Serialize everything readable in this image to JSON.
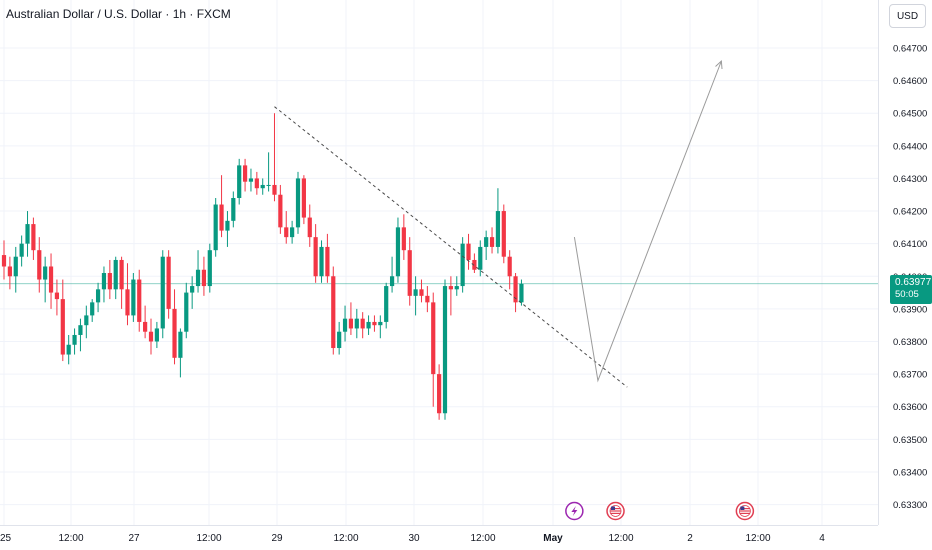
{
  "header": {
    "symbol_title": "Australian Dollar / U.S. Dollar · 1h · FXCM"
  },
  "currency_button": "USD",
  "last_price": {
    "price": "0.63977",
    "countdown": "50:05"
  },
  "colors": {
    "up": "#089981",
    "down": "#f23645",
    "grid": "#f0f3fa",
    "price_line": "#089981",
    "drawing": "#9b9b9b",
    "trend_dash": "#4a4a4a"
  },
  "chart_data": {
    "type": "candlestick",
    "y_ticks": [
      "0.64700",
      "0.64600",
      "0.64500",
      "0.64400",
      "0.64300",
      "0.64200",
      "0.64100",
      "0.64000",
      "0.63900",
      "0.63800",
      "0.63700",
      "0.63600",
      "0.63500",
      "0.63400",
      "0.63300"
    ],
    "ylim": [
      0.63268,
      0.64795
    ],
    "x_ticks": [
      "25",
      "12:00",
      "27",
      "12:00",
      "29",
      "12:00",
      "30",
      "12:00",
      "May",
      "12:00",
      "2",
      "12:00",
      "4"
    ],
    "candles": [
      [
        0.64065,
        0.6411,
        0.6399,
        0.6403
      ],
      [
        0.6403,
        0.6406,
        0.6396,
        0.64
      ],
      [
        0.64,
        0.6409,
        0.6395,
        0.6406
      ],
      [
        0.6406,
        0.64125,
        0.6403,
        0.641
      ],
      [
        0.641,
        0.642,
        0.6406,
        0.6416
      ],
      [
        0.6416,
        0.6418,
        0.6405,
        0.6408
      ],
      [
        0.6408,
        0.6412,
        0.6395,
        0.6399
      ],
      [
        0.6399,
        0.6406,
        0.6392,
        0.6403
      ],
      [
        0.6403,
        0.6407,
        0.639,
        0.6395
      ],
      [
        0.6395,
        0.6399,
        0.6388,
        0.6393
      ],
      [
        0.6393,
        0.6399,
        0.6374,
        0.6376
      ],
      [
        0.6376,
        0.6382,
        0.6373,
        0.6379
      ],
      [
        0.6379,
        0.6384,
        0.6376,
        0.6382
      ],
      [
        0.6382,
        0.6387,
        0.6377,
        0.6385
      ],
      [
        0.6385,
        0.6391,
        0.6381,
        0.6388
      ],
      [
        0.6388,
        0.6393,
        0.6386,
        0.6392
      ],
      [
        0.6392,
        0.6398,
        0.6389,
        0.6396
      ],
      [
        0.6396,
        0.6403,
        0.6392,
        0.6401
      ],
      [
        0.6401,
        0.6405,
        0.6393,
        0.6396
      ],
      [
        0.6396,
        0.6406,
        0.6393,
        0.6405
      ],
      [
        0.6405,
        0.6406,
        0.639,
        0.6396
      ],
      [
        0.6396,
        0.6404,
        0.6385,
        0.6388
      ],
      [
        0.6388,
        0.6401,
        0.6386,
        0.6399
      ],
      [
        0.6399,
        0.6402,
        0.6383,
        0.6386
      ],
      [
        0.6386,
        0.6391,
        0.6381,
        0.6383
      ],
      [
        0.6383,
        0.6387,
        0.6376,
        0.638
      ],
      [
        0.638,
        0.6386,
        0.6378,
        0.6384
      ],
      [
        0.6384,
        0.6408,
        0.6381,
        0.6406
      ],
      [
        0.6406,
        0.6408,
        0.6387,
        0.639
      ],
      [
        0.639,
        0.6396,
        0.6373,
        0.6375
      ],
      [
        0.6375,
        0.6384,
        0.6369,
        0.6383
      ],
      [
        0.6383,
        0.6398,
        0.6381,
        0.6395
      ],
      [
        0.6395,
        0.64,
        0.639,
        0.6397
      ],
      [
        0.6397,
        0.6408,
        0.6395,
        0.6402
      ],
      [
        0.6402,
        0.6406,
        0.6394,
        0.6397
      ],
      [
        0.6397,
        0.641,
        0.6395,
        0.6408
      ],
      [
        0.6408,
        0.6424,
        0.6406,
        0.6422
      ],
      [
        0.6422,
        0.6431,
        0.6412,
        0.6414
      ],
      [
        0.6414,
        0.642,
        0.6409,
        0.6417
      ],
      [
        0.6417,
        0.6426,
        0.6415,
        0.6424
      ],
      [
        0.6424,
        0.6436,
        0.6422,
        0.6434
      ],
      [
        0.6434,
        0.6436,
        0.6426,
        0.6429
      ],
      [
        0.6429,
        0.6433,
        0.6426,
        0.643
      ],
      [
        0.643,
        0.6432,
        0.6425,
        0.6427
      ],
      [
        0.6427,
        0.643,
        0.6425,
        0.6428
      ],
      [
        0.6428,
        0.6438,
        0.6426,
        0.6428
      ],
      [
        0.6428,
        0.645,
        0.6423,
        0.6425
      ],
      [
        0.6425,
        0.6428,
        0.6413,
        0.6415
      ],
      [
        0.6415,
        0.642,
        0.641,
        0.6412
      ],
      [
        0.6412,
        0.6417,
        0.641,
        0.6415
      ],
      [
        0.6415,
        0.6432,
        0.6413,
        0.643
      ],
      [
        0.643,
        0.6431,
        0.6416,
        0.6418
      ],
      [
        0.6418,
        0.6422,
        0.6409,
        0.6412
      ],
      [
        0.6412,
        0.6416,
        0.6398,
        0.64
      ],
      [
        0.64,
        0.6411,
        0.6398,
        0.6409
      ],
      [
        0.6409,
        0.6413,
        0.6398,
        0.64
      ],
      [
        0.64,
        0.6403,
        0.6376,
        0.6378
      ],
      [
        0.6378,
        0.6386,
        0.6376,
        0.6383
      ],
      [
        0.6383,
        0.6391,
        0.638,
        0.6387
      ],
      [
        0.6387,
        0.6392,
        0.6382,
        0.6384
      ],
      [
        0.6384,
        0.639,
        0.6381,
        0.6387
      ],
      [
        0.6387,
        0.6389,
        0.6381,
        0.6384
      ],
      [
        0.6384,
        0.6388,
        0.6382,
        0.6386
      ],
      [
        0.6386,
        0.6388,
        0.6383,
        0.6385
      ],
      [
        0.6385,
        0.6388,
        0.6381,
        0.6386
      ],
      [
        0.6386,
        0.6398,
        0.6384,
        0.6397
      ],
      [
        0.6397,
        0.6406,
        0.6395,
        0.64
      ],
      [
        0.64,
        0.6418,
        0.6398,
        0.6415
      ],
      [
        0.6415,
        0.6419,
        0.6405,
        0.6408
      ],
      [
        0.6408,
        0.6412,
        0.6391,
        0.6394
      ],
      [
        0.6394,
        0.64,
        0.6388,
        0.6396
      ],
      [
        0.6396,
        0.6399,
        0.6392,
        0.6394
      ],
      [
        0.6394,
        0.6397,
        0.6389,
        0.6392
      ],
      [
        0.6392,
        0.6395,
        0.636,
        0.637
      ],
      [
        0.637,
        0.6373,
        0.6356,
        0.6358
      ],
      [
        0.6358,
        0.6399,
        0.6356,
        0.6397
      ],
      [
        0.6397,
        0.64,
        0.6388,
        0.6396
      ],
      [
        0.6396,
        0.64,
        0.6394,
        0.6397
      ],
      [
        0.6397,
        0.6412,
        0.6395,
        0.641
      ],
      [
        0.641,
        0.6413,
        0.6402,
        0.6405
      ],
      [
        0.6405,
        0.6407,
        0.6401,
        0.6402
      ],
      [
        0.6402,
        0.6411,
        0.64,
        0.6409
      ],
      [
        0.6409,
        0.6414,
        0.6405,
        0.6412
      ],
      [
        0.6412,
        0.6415,
        0.6407,
        0.6409
      ],
      [
        0.6409,
        0.6427,
        0.6407,
        0.642
      ],
      [
        0.642,
        0.6422,
        0.6404,
        0.6406
      ],
      [
        0.6406,
        0.6408,
        0.6396,
        0.64
      ],
      [
        0.64,
        0.6401,
        0.6389,
        0.6392
      ],
      [
        0.6392,
        0.6399,
        0.6391,
        0.63977
      ]
    ]
  },
  "drawings": {
    "downtrend_line": {
      "from": [
        46,
        0.6452
      ],
      "to": [
        106,
        0.6366
      ]
    },
    "projection_path": [
      [
        97,
        0.6412
      ],
      [
        101,
        0.6368
      ],
      [
        122,
        0.6466
      ]
    ]
  },
  "event_markers": [
    {
      "icon": "lightning-icon",
      "bar": 97,
      "color": "#9c27b0"
    },
    {
      "icon": "us-flag-icon",
      "bar": 104,
      "color": "#e03e52"
    },
    {
      "icon": "us-flag-icon",
      "bar": 126,
      "color": "#e03e52"
    }
  ]
}
